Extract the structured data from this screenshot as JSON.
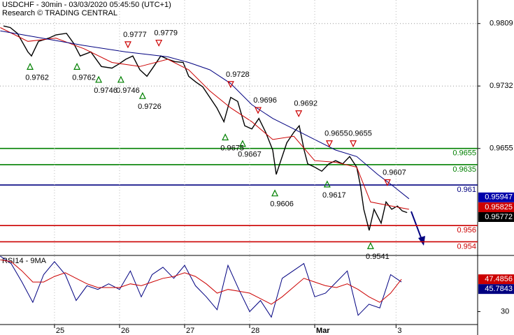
{
  "chart_data": [
    {
      "type": "line",
      "title": "USDCHF - 30min - 03/03/2020 05:45:50 (UTC+1)",
      "subtitle": "Research © TRADING CENTRAL",
      "xlim": [
        -20.1,
        156.1
      ],
      "ylim": [
        0.9524,
        0.9838
      ],
      "yticks": [
        0.9809,
        0.9732,
        0.9655
      ],
      "grid": true,
      "series": [
        {
          "color": "#000000",
          "x": [
            -18.8,
            -16.3,
            -13.7,
            -9.8,
            -8.5,
            -5.9,
            -2.1,
            0.5,
            4.4,
            7.0,
            9.5,
            13.4,
            17.3,
            21.2,
            23.7,
            26.3,
            28.9,
            31.5,
            34.1,
            36.6,
            39.2,
            41.8,
            44.4,
            47.5,
            49.5,
            52.1,
            54.7,
            57.3,
            59.9,
            62.5,
            65.0,
            67.6,
            70.2,
            72.8,
            75.4,
            77.9,
            80.5,
            81.8,
            83.1,
            85.7,
            88.3,
            90.3,
            92.1,
            93.4,
            96.0,
            98.6,
            101.2,
            103.7,
            106.3,
            108.9,
            111.5,
            112.8,
            114.1,
            116.1,
            117.9,
            120.5,
            122.3,
            124.4,
            126.5,
            128.3,
            130.1
          ],
          "values": [
            0.9806,
            0.9804,
            0.9797,
            0.9774,
            0.9769,
            0.9787,
            0.9791,
            0.9795,
            0.9797,
            0.9785,
            0.9769,
            0.9774,
            0.9756,
            0.9754,
            0.9759,
            0.9765,
            0.9769,
            0.9752,
            0.9744,
            0.9756,
            0.9769,
            0.9765,
            0.9762,
            0.9761,
            0.9744,
            0.9737,
            0.9731,
            0.9718,
            0.9705,
            0.9688,
            0.9718,
            0.9713,
            0.9683,
            0.9679,
            0.9692,
            0.9675,
            0.9653,
            0.9623,
            0.9636,
            0.9662,
            0.9675,
            0.9683,
            0.9653,
            0.9636,
            0.9632,
            0.9627,
            0.9636,
            0.964,
            0.9636,
            0.9645,
            0.9632,
            0.961,
            0.958,
            0.9554,
            0.958,
            0.9563,
            0.9589,
            0.958,
            0.9584,
            0.9578,
            0.9576
          ]
        },
        {
          "color": "#cc0000",
          "x": [
            -20,
            -9.8,
            0.5,
            10.8,
            21.2,
            31.5,
            41.8,
            49.5,
            57.3,
            65.0,
            72.8,
            80.5,
            88.3,
            96.0,
            103.7,
            111.5,
            116.6,
            124.4,
            130.8
          ],
          "values": [
            0.9804,
            0.9787,
            0.9791,
            0.9778,
            0.9761,
            0.9756,
            0.9765,
            0.9752,
            0.9726,
            0.9705,
            0.9688,
            0.9666,
            0.967,
            0.964,
            0.9638,
            0.9632,
            0.9589,
            0.9584,
            0.958
          ]
        },
        {
          "color": "#000080",
          "x": [
            -20,
            -4.6,
            10.8,
            26.3,
            41.8,
            49.5,
            57.3,
            65.0,
            72.8,
            80.5,
            88.3,
            96.0,
            103.7,
            111.5,
            119.2,
            124.4,
            130.8
          ],
          "values": [
            0.98,
            0.9791,
            0.9782,
            0.9774,
            0.9768,
            0.9761,
            0.9752,
            0.9735,
            0.9709,
            0.9692,
            0.9679,
            0.9666,
            0.9653,
            0.9645,
            0.9623,
            0.961,
            0.9593
          ]
        }
      ],
      "levels": [
        {
          "value": 0.9655,
          "color": "#008000"
        },
        {
          "value": 0.9635,
          "color": "#008000"
        },
        {
          "value": 0.961,
          "color": "#000080"
        },
        {
          "value": 0.956,
          "color": "#cc0000"
        },
        {
          "value": 0.954,
          "color": "#cc0000"
        }
      ],
      "swings": [
        {
          "kind": "low",
          "x": -9.0,
          "value": 0.9762
        },
        {
          "kind": "low",
          "x": 8.3,
          "value": 0.9762
        },
        {
          "kind": "low",
          "x": 16.3,
          "value": 0.9746
        },
        {
          "kind": "low",
          "x": 24.5,
          "value": 0.9746
        },
        {
          "kind": "low",
          "x": 32.5,
          "value": 0.9726
        },
        {
          "kind": "low",
          "x": 63.0,
          "value": 0.9675
        },
        {
          "kind": "low",
          "x": 69.4,
          "value": 0.9667
        },
        {
          "kind": "low",
          "x": 81.3,
          "value": 0.9606
        },
        {
          "kind": "low",
          "x": 100.6,
          "value": 0.9617
        },
        {
          "kind": "low",
          "x": 116.6,
          "value": 0.9541
        },
        {
          "kind": "high",
          "x": 27.1,
          "value": 0.9777
        },
        {
          "kind": "high",
          "x": 38.5,
          "value": 0.9779
        },
        {
          "kind": "high",
          "x": 65.0,
          "value": 0.9728
        },
        {
          "kind": "high",
          "x": 75.1,
          "value": 0.9696
        },
        {
          "kind": "high",
          "x": 90.1,
          "value": 0.9692
        },
        {
          "kind": "high",
          "x": 101.4,
          "value": 0.9655
        },
        {
          "kind": "high",
          "x": 110.2,
          "value": 0.9655
        },
        {
          "kind": "high",
          "x": 122.8,
          "value": 0.9607
        }
      ],
      "price_boxes": [
        {
          "value": 0.95947,
          "color": "#0000aa"
        },
        {
          "value": 0.95825,
          "color": "#cc0000"
        },
        {
          "value": 0.95772,
          "color": "#000000"
        }
      ]
    },
    {
      "type": "line",
      "title": "RSI14 - 9MA",
      "xlim": [
        -20.1,
        156.1
      ],
      "ylim": [
        23,
        60
      ],
      "yticks": [
        30
      ],
      "xticks": [
        {
          "value": 0,
          "label": "25"
        },
        {
          "value": 24,
          "label": "26"
        },
        {
          "value": 48,
          "label": "27"
        },
        {
          "value": 72,
          "label": "28"
        },
        {
          "value": 96,
          "label": "Mar"
        },
        {
          "value": 126,
          "label": "3"
        }
      ],
      "x": [
        -20,
        -16,
        -12,
        -8,
        -4,
        0,
        4,
        8,
        12,
        16,
        20,
        24,
        28,
        32,
        36,
        40,
        44,
        48,
        52,
        56,
        60,
        64,
        68,
        72,
        76,
        80,
        84,
        88,
        92,
        96,
        100,
        104,
        108,
        112,
        116,
        120,
        124,
        128
      ],
      "series": [
        {
          "color": "#000080",
          "values": [
            60,
            56,
            46,
            35,
            50,
            57,
            50,
            36,
            44,
            42,
            45,
            42,
            52,
            38,
            50,
            54,
            48,
            55,
            44,
            38,
            31,
            55,
            42,
            30,
            36,
            27,
            48,
            52,
            56,
            38,
            40,
            46,
            52,
            28,
            34,
            32,
            50,
            46
          ]
        },
        {
          "color": "#cc0000",
          "values": [
            58,
            57,
            52,
            46,
            46,
            49,
            51,
            48,
            45,
            43,
            43,
            43,
            45,
            44,
            46,
            48,
            49,
            51,
            49,
            45,
            40,
            42,
            41,
            40,
            37,
            34,
            38,
            43,
            48,
            46,
            44,
            43,
            45,
            42,
            38,
            35,
            40,
            47.5
          ]
        }
      ],
      "price_boxes": [
        {
          "value": 47.4856,
          "color": "#cc0000"
        },
        {
          "value": 45.7843,
          "color": "#000080"
        }
      ]
    }
  ]
}
